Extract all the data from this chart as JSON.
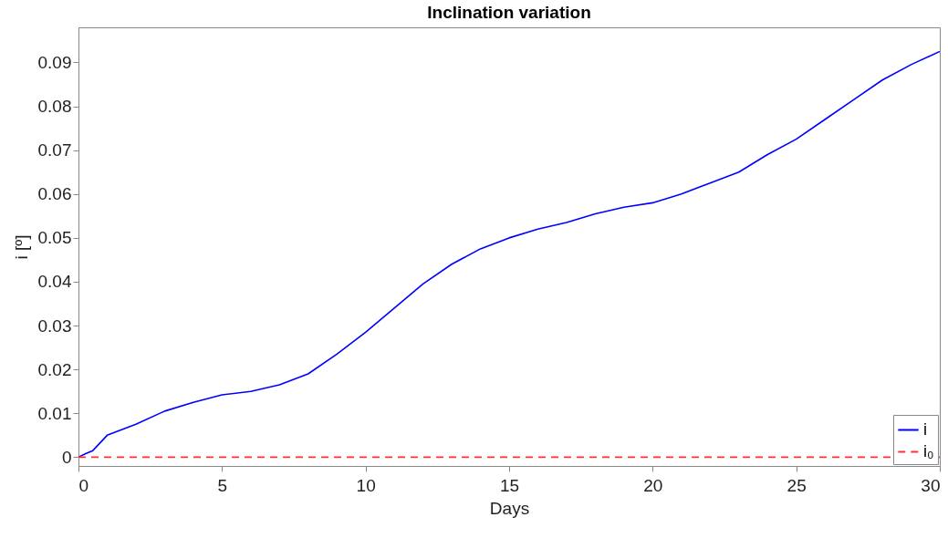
{
  "chart_data": {
    "type": "line",
    "title": "Inclination variation",
    "xlabel": "Days",
    "ylabel": "i [º]",
    "series": [
      {
        "name": "i",
        "color": "#0000ff",
        "line_style": "solid",
        "x": [
          0,
          0.25,
          0.5,
          1,
          2,
          3,
          4,
          5,
          6,
          7,
          8,
          9,
          10,
          11,
          12,
          13,
          14,
          15,
          16,
          17,
          18,
          19,
          20,
          21,
          22,
          23,
          24,
          25,
          26,
          27,
          28,
          29,
          30
        ],
        "values": [
          0,
          0.0008,
          0.0015,
          0.005,
          0.0075,
          0.0105,
          0.0125,
          0.0142,
          0.015,
          0.0165,
          0.019,
          0.0235,
          0.0285,
          0.034,
          0.0395,
          0.044,
          0.0475,
          0.05,
          0.052,
          0.0535,
          0.0555,
          0.057,
          0.058,
          0.06,
          0.0625,
          0.065,
          0.069,
          0.0725,
          0.077,
          0.0815,
          0.086,
          0.0895,
          0.0925
        ]
      },
      {
        "name": "i₀",
        "color": "#ff3333",
        "line_style": "dashed",
        "x": [
          0,
          30
        ],
        "values": [
          0,
          0
        ]
      }
    ],
    "xlim": [
      0,
      30
    ],
    "xticks": [
      0,
      5,
      10,
      15,
      20,
      25,
      30
    ],
    "ylim": [
      -0.002,
      0.098
    ],
    "yticks": [
      0,
      0.01,
      0.02,
      0.03,
      0.04,
      0.05,
      0.06,
      0.07,
      0.08,
      0.09
    ],
    "grid": false,
    "legend": "bottom right"
  }
}
